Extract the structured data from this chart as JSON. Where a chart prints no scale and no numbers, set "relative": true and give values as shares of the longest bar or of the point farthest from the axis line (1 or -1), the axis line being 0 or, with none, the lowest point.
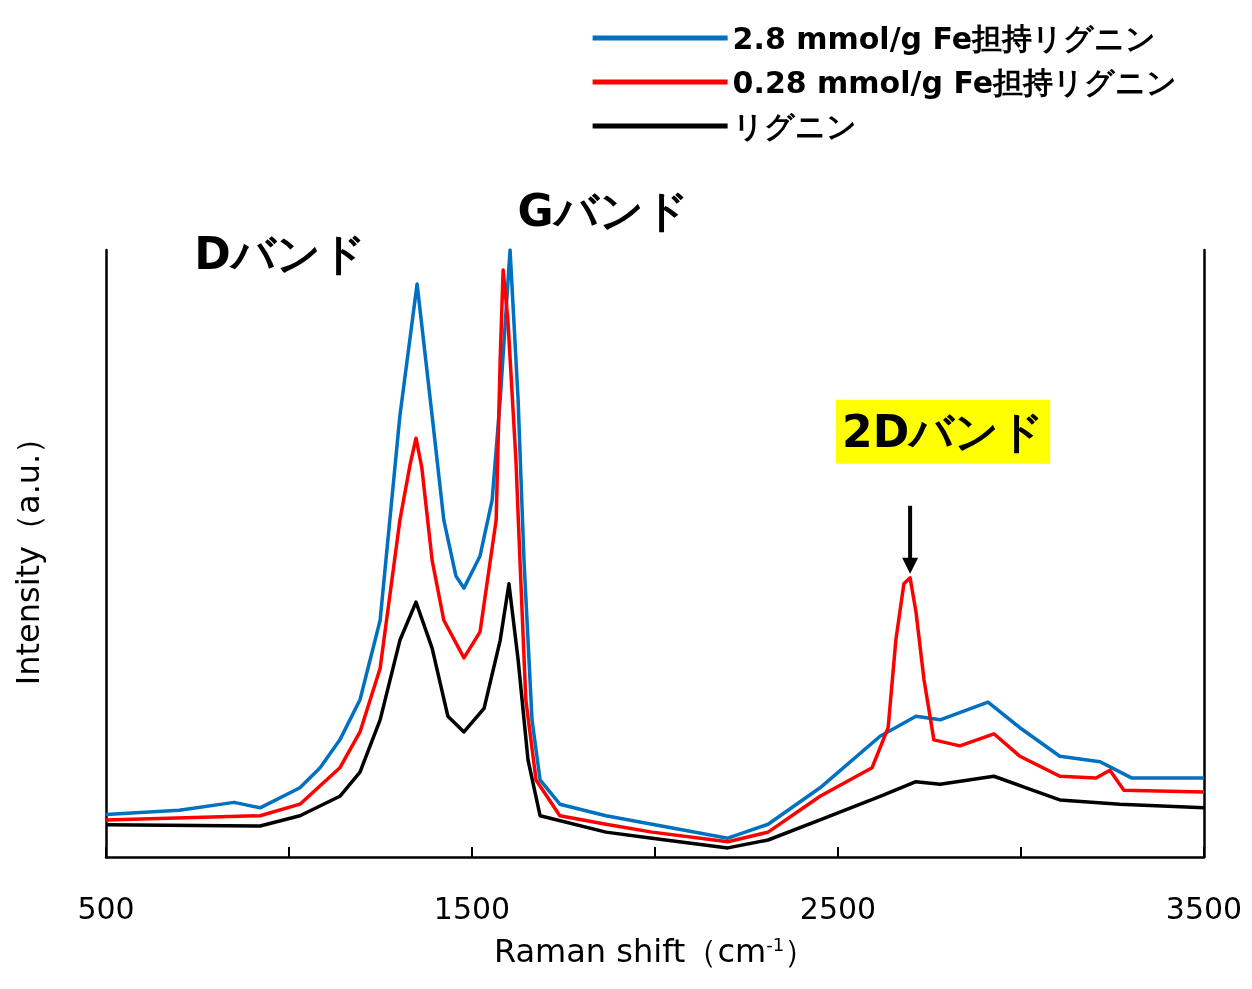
{
  "chart_data": {
    "type": "line",
    "relative": true,
    "xlabel": "Raman shift（cm$^{-1}$）",
    "ylabel": "Intensity（a.u.）",
    "xlim": [
      500,
      3500
    ],
    "xticks": [
      500,
      {
        "value": 1000,
        "label": null
      },
      1500,
      {
        "value": 2000,
        "label": null
      },
      2500,
      {
        "value": 3000,
        "label": null
      },
      3500
    ],
    "legend": "top right",
    "annotations": [
      {
        "text": "Dバンド",
        "x": 1350,
        "y": 0.944
      },
      {
        "text": "Gバンド",
        "x": 1604,
        "y": 1.0
      },
      {
        "text": "2Dバンド",
        "x": 2697,
        "y": 0.46
      }
    ],
    "series": [
      {
        "name": "2.8 mmol/g Fe担持リグニン",
        "color": "#0070c0",
        "x": [
          500,
          700,
          850,
          921,
          1030,
          1085,
          1139,
          1194,
          1249,
          1303,
          1350,
          1391,
          1423,
          1456,
          1478,
          1522,
          1555,
          1577,
          1604,
          1626,
          1642,
          1664,
          1686,
          1740,
          1866,
          1992,
          2199,
          2309,
          2451,
          2615,
          2713,
          2779,
          2910,
          2997,
          3106,
          3216,
          3303,
          3500
        ],
        "values": [
          0.07,
          0.077,
          0.09,
          0.081,
          0.114,
          0.147,
          0.193,
          0.259,
          0.39,
          0.727,
          0.944,
          0.727,
          0.555,
          0.463,
          0.443,
          0.496,
          0.588,
          0.753,
          1.0,
          0.753,
          0.489,
          0.226,
          0.127,
          0.087,
          0.068,
          0.054,
          0.031,
          0.054,
          0.114,
          0.199,
          0.232,
          0.226,
          0.255,
          0.213,
          0.166,
          0.157,
          0.13,
          0.13
        ]
      },
      {
        "name": "0.28 mmol/g Fe担持リグニン",
        "color": "#ff0000",
        "x": [
          500,
          921,
          1030,
          1139,
          1194,
          1249,
          1303,
          1331,
          1347,
          1363,
          1391,
          1423,
          1478,
          1522,
          1566,
          1577,
          1585,
          1598,
          1620,
          1631,
          1647,
          1675,
          1740,
          1866,
          1992,
          2199,
          2309,
          2451,
          2593,
          2637,
          2658,
          2680,
          2697,
          2713,
          2735,
          2762,
          2833,
          2926,
          2997,
          3106,
          3205,
          3243,
          3281,
          3500
        ],
        "values": [
          0.061,
          0.068,
          0.087,
          0.147,
          0.206,
          0.311,
          0.555,
          0.647,
          0.69,
          0.641,
          0.489,
          0.39,
          0.328,
          0.371,
          0.555,
          0.819,
          0.967,
          0.885,
          0.654,
          0.489,
          0.259,
          0.127,
          0.068,
          0.054,
          0.041,
          0.025,
          0.041,
          0.1,
          0.147,
          0.213,
          0.357,
          0.45,
          0.46,
          0.404,
          0.292,
          0.193,
          0.183,
          0.203,
          0.166,
          0.133,
          0.13,
          0.143,
          0.11,
          0.107
        ]
      },
      {
        "name": "リグニン",
        "color": "#000000",
        "x": [
          500,
          921,
          1030,
          1139,
          1194,
          1249,
          1303,
          1347,
          1391,
          1434,
          1478,
          1533,
          1577,
          1601,
          1626,
          1653,
          1686,
          1866,
          1992,
          2199,
          2309,
          2451,
          2615,
          2713,
          2779,
          2926,
          3014,
          3106,
          3270,
          3500
        ],
        "values": [
          0.053,
          0.051,
          0.068,
          0.1,
          0.14,
          0.226,
          0.357,
          0.42,
          0.344,
          0.232,
          0.206,
          0.245,
          0.357,
          0.45,
          0.325,
          0.16,
          0.068,
          0.041,
          0.031,
          0.015,
          0.028,
          0.061,
          0.1,
          0.124,
          0.12,
          0.133,
          0.114,
          0.094,
          0.087,
          0.081
        ]
      }
    ]
  }
}
